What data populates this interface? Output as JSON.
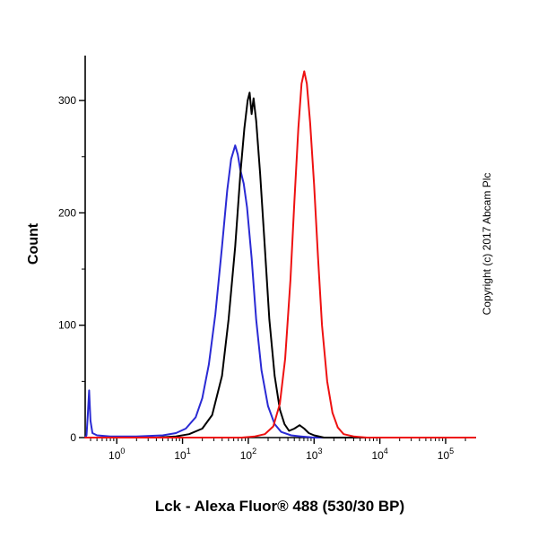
{
  "chart_data": {
    "type": "line",
    "subtype": "flow-cytometry-histogram",
    "title": "",
    "xlabel": "Lck - Alexa Fluor® 488 (530/30 BP)",
    "ylabel": "Count",
    "copyright": "Copyright (c) 2017 Abcam Plc",
    "x_scale": "log10",
    "xlim_log": [
      -0.48,
      5.45
    ],
    "ylim": [
      0,
      340
    ],
    "y_ticks": [
      0,
      100,
      200,
      300
    ],
    "y_minor_step": 50,
    "x_tick_exponents": [
      0,
      1,
      2,
      3,
      4,
      5
    ],
    "x_tick_base": "10",
    "grid": false,
    "legend": "none",
    "axis_color": "#000000",
    "series": [
      {
        "name": "blue-curve",
        "color": "#2a2ad4",
        "peak_x_log": 1.8,
        "peak_count": 260,
        "points": [
          [
            -0.48,
            0
          ],
          [
            -0.46,
            2
          ],
          [
            -0.44,
            20
          ],
          [
            -0.42,
            42
          ],
          [
            -0.4,
            15
          ],
          [
            -0.37,
            4
          ],
          [
            -0.3,
            2
          ],
          [
            -0.1,
            1
          ],
          [
            0.3,
            1
          ],
          [
            0.7,
            2
          ],
          [
            0.9,
            4
          ],
          [
            1.05,
            8
          ],
          [
            1.2,
            18
          ],
          [
            1.3,
            35
          ],
          [
            1.4,
            65
          ],
          [
            1.5,
            110
          ],
          [
            1.6,
            170
          ],
          [
            1.68,
            220
          ],
          [
            1.74,
            248
          ],
          [
            1.8,
            260
          ],
          [
            1.84,
            252
          ],
          [
            1.88,
            238
          ],
          [
            1.93,
            226
          ],
          [
            1.98,
            205
          ],
          [
            2.05,
            160
          ],
          [
            2.12,
            105
          ],
          [
            2.2,
            60
          ],
          [
            2.3,
            28
          ],
          [
            2.4,
            12
          ],
          [
            2.5,
            5
          ],
          [
            2.65,
            2
          ],
          [
            2.8,
            1
          ],
          [
            3.0,
            0
          ],
          [
            5.45,
            0
          ]
        ]
      },
      {
        "name": "black-curve",
        "color": "#000000",
        "peak_x_log": 2.02,
        "peak_count": 307,
        "points": [
          [
            -0.48,
            0
          ],
          [
            0.6,
            0
          ],
          [
            0.9,
            1
          ],
          [
            1.1,
            3
          ],
          [
            1.3,
            8
          ],
          [
            1.45,
            20
          ],
          [
            1.6,
            55
          ],
          [
            1.7,
            105
          ],
          [
            1.8,
            170
          ],
          [
            1.88,
            235
          ],
          [
            1.94,
            275
          ],
          [
            1.99,
            300
          ],
          [
            2.02,
            307
          ],
          [
            2.05,
            288
          ],
          [
            2.08,
            302
          ],
          [
            2.12,
            282
          ],
          [
            2.18,
            235
          ],
          [
            2.25,
            170
          ],
          [
            2.32,
            105
          ],
          [
            2.4,
            55
          ],
          [
            2.48,
            25
          ],
          [
            2.55,
            12
          ],
          [
            2.62,
            6
          ],
          [
            2.7,
            8
          ],
          [
            2.78,
            11
          ],
          [
            2.85,
            8
          ],
          [
            2.92,
            4
          ],
          [
            3.0,
            2
          ],
          [
            3.15,
            0
          ],
          [
            5.45,
            0
          ]
        ]
      },
      {
        "name": "red-curve",
        "color": "#ee1111",
        "peak_x_log": 2.85,
        "peak_count": 326,
        "points": [
          [
            -0.48,
            0
          ],
          [
            1.9,
            0
          ],
          [
            2.1,
            1
          ],
          [
            2.25,
            3
          ],
          [
            2.38,
            10
          ],
          [
            2.48,
            30
          ],
          [
            2.56,
            70
          ],
          [
            2.64,
            140
          ],
          [
            2.7,
            210
          ],
          [
            2.76,
            275
          ],
          [
            2.81,
            315
          ],
          [
            2.85,
            326
          ],
          [
            2.89,
            315
          ],
          [
            2.94,
            280
          ],
          [
            3.0,
            225
          ],
          [
            3.06,
            160
          ],
          [
            3.12,
            100
          ],
          [
            3.2,
            50
          ],
          [
            3.28,
            22
          ],
          [
            3.36,
            9
          ],
          [
            3.45,
            3
          ],
          [
            3.6,
            1
          ],
          [
            3.8,
            0
          ],
          [
            5.45,
            0
          ]
        ]
      }
    ]
  }
}
